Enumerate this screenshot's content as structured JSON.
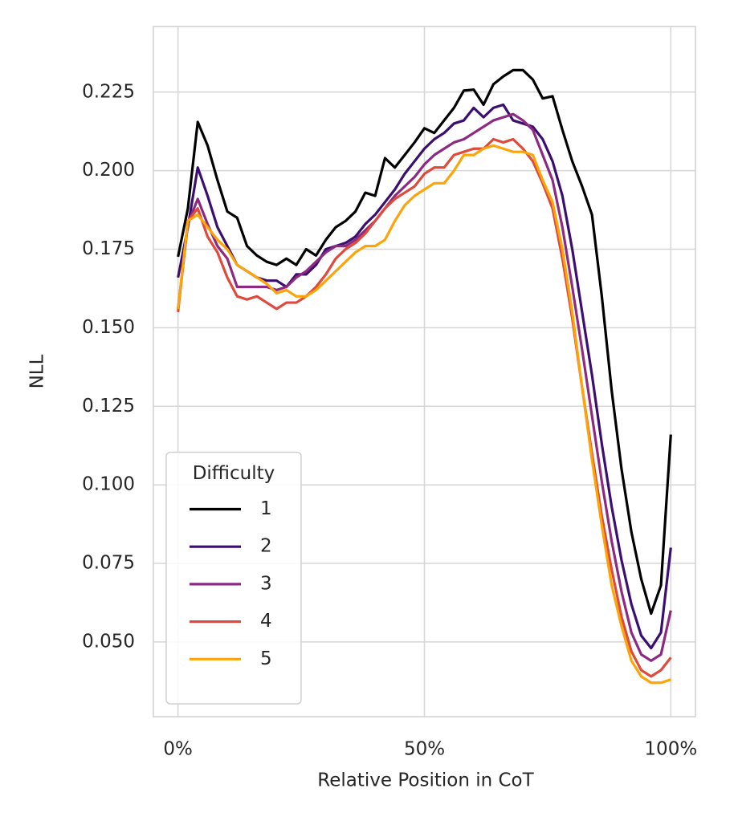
{
  "chart_data": {
    "type": "line",
    "xlabel": "Relative Position in CoT",
    "ylabel": "NLL",
    "x": [
      0,
      2,
      4,
      6,
      8,
      10,
      12,
      14,
      16,
      18,
      20,
      22,
      24,
      26,
      28,
      30,
      32,
      34,
      36,
      38,
      40,
      42,
      44,
      46,
      48,
      50,
      52,
      54,
      56,
      58,
      60,
      62,
      64,
      66,
      68,
      70,
      72,
      74,
      76,
      78,
      80,
      82,
      84,
      86,
      88,
      90,
      92,
      94,
      96,
      98,
      100
    ],
    "series": [
      {
        "name": "1",
        "color": "#000000",
        "values": [
          0.1726,
          0.188,
          0.2155,
          0.208,
          0.197,
          0.187,
          0.185,
          0.176,
          0.173,
          0.171,
          0.17,
          0.172,
          0.17,
          0.175,
          0.173,
          0.178,
          0.182,
          0.184,
          0.187,
          0.193,
          0.192,
          0.204,
          0.201,
          0.205,
          0.209,
          0.2135,
          0.212,
          0.216,
          0.22,
          0.2255,
          0.2258,
          0.221,
          0.2275,
          0.23,
          0.232,
          0.232,
          0.229,
          0.223,
          0.2237,
          0.213,
          0.203,
          0.195,
          0.186,
          0.16,
          0.13,
          0.105,
          0.085,
          0.07,
          0.059,
          0.068,
          0.116
        ]
      },
      {
        "name": "2",
        "color": "#3b0f70",
        "values": [
          0.166,
          0.182,
          0.201,
          0.192,
          0.182,
          0.176,
          0.17,
          0.168,
          0.166,
          0.165,
          0.165,
          0.163,
          0.167,
          0.167,
          0.17,
          0.175,
          0.176,
          0.177,
          0.179,
          0.183,
          0.186,
          0.19,
          0.194,
          0.199,
          0.203,
          0.207,
          0.21,
          0.212,
          0.215,
          0.216,
          0.22,
          0.217,
          0.22,
          0.221,
          0.216,
          0.215,
          0.214,
          0.21,
          0.203,
          0.192,
          0.175,
          0.155,
          0.135,
          0.113,
          0.093,
          0.076,
          0.062,
          0.052,
          0.048,
          0.053,
          0.08
        ]
      },
      {
        "name": "3",
        "color": "#8c2981",
        "values": [
          0.156,
          0.183,
          0.191,
          0.183,
          0.176,
          0.172,
          0.163,
          0.163,
          0.163,
          0.163,
          0.162,
          0.163,
          0.166,
          0.168,
          0.171,
          0.174,
          0.176,
          0.176,
          0.178,
          0.181,
          0.184,
          0.188,
          0.192,
          0.195,
          0.198,
          0.202,
          0.205,
          0.207,
          0.209,
          0.21,
          0.212,
          0.214,
          0.216,
          0.217,
          0.218,
          0.216,
          0.213,
          0.205,
          0.197,
          0.182,
          0.163,
          0.143,
          0.122,
          0.101,
          0.082,
          0.066,
          0.053,
          0.046,
          0.044,
          0.046,
          0.06
        ]
      },
      {
        "name": "4",
        "color": "#de4a3c",
        "values": [
          0.155,
          0.184,
          0.188,
          0.179,
          0.174,
          0.166,
          0.16,
          0.159,
          0.16,
          0.158,
          0.156,
          0.158,
          0.158,
          0.16,
          0.163,
          0.167,
          0.172,
          0.175,
          0.177,
          0.18,
          0.184,
          0.188,
          0.191,
          0.193,
          0.195,
          0.199,
          0.201,
          0.201,
          0.205,
          0.206,
          0.207,
          0.207,
          0.21,
          0.209,
          0.21,
          0.207,
          0.203,
          0.196,
          0.188,
          0.172,
          0.153,
          0.131,
          0.11,
          0.09,
          0.073,
          0.058,
          0.047,
          0.041,
          0.039,
          0.041,
          0.045
        ]
      },
      {
        "name": "5",
        "color": "#fca50a",
        "values": [
          0.156,
          0.184,
          0.186,
          0.182,
          0.178,
          0.175,
          0.17,
          0.168,
          0.166,
          0.164,
          0.161,
          0.162,
          0.16,
          0.16,
          0.162,
          0.165,
          0.168,
          0.171,
          0.174,
          0.176,
          0.176,
          0.178,
          0.184,
          0.189,
          0.192,
          0.194,
          0.196,
          0.196,
          0.2,
          0.205,
          0.205,
          0.207,
          0.208,
          0.207,
          0.206,
          0.206,
          0.205,
          0.197,
          0.19,
          0.175,
          0.155,
          0.131,
          0.108,
          0.087,
          0.068,
          0.055,
          0.044,
          0.039,
          0.037,
          0.037,
          0.038
        ]
      }
    ],
    "xlim": [
      -5,
      105
    ],
    "xticks": [
      {
        "value": 0,
        "label": "0%"
      },
      {
        "value": 50,
        "label": "50%"
      },
      {
        "value": 100,
        "label": "100%"
      }
    ],
    "ylim": [
      0.0262,
      0.2459
    ],
    "yticks": [
      {
        "value": 0.05,
        "label": "0.050"
      },
      0.075,
      {
        "value": 0.1,
        "label": "0.100"
      },
      0.125,
      {
        "value": 0.15,
        "label": "0.150"
      },
      0.175,
      {
        "value": 0.2,
        "label": "0.200"
      },
      0.225
    ],
    "grid": true,
    "legend": {
      "title": "Difficulty",
      "position": "lower left"
    }
  }
}
